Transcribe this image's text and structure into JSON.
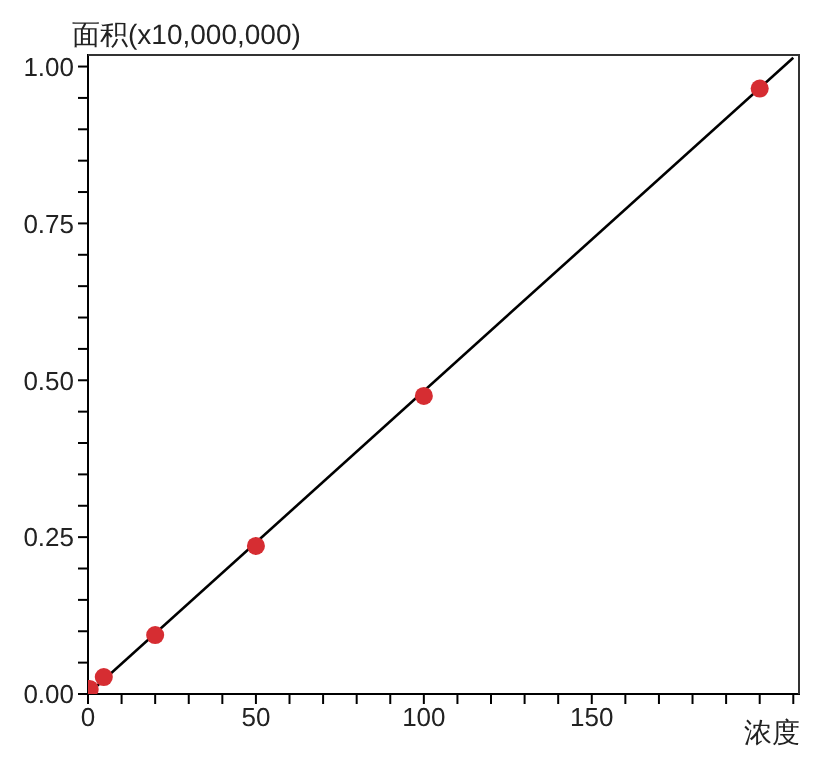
{
  "chart_data": {
    "type": "scatter",
    "xlabel": "浓度",
    "ylabel": "面积(x10,000,000)",
    "xlim": [
      0,
      212
    ],
    "ylim": [
      0,
      1.02
    ],
    "xticks": [
      0,
      {
        "value": 10,
        "label": null
      },
      {
        "value": 20,
        "label": null
      },
      {
        "value": 30,
        "label": null
      },
      {
        "value": 40,
        "label": null
      },
      50,
      {
        "value": 60,
        "label": null
      },
      {
        "value": 70,
        "label": null
      },
      {
        "value": 80,
        "label": null
      },
      {
        "value": 90,
        "label": null
      },
      100,
      {
        "value": 110,
        "label": null
      },
      {
        "value": 120,
        "label": null
      },
      {
        "value": 130,
        "label": null
      },
      {
        "value": 140,
        "label": null
      },
      150,
      {
        "value": 160,
        "label": null
      },
      {
        "value": 170,
        "label": null
      },
      {
        "value": 180,
        "label": null
      },
      {
        "value": 190,
        "label": null
      },
      {
        "value": 200,
        "label": null
      },
      {
        "value": 210,
        "label": null
      }
    ],
    "yticks": [
      {
        "value": 0,
        "label": "0.00"
      },
      {
        "value": 0.05,
        "label": null
      },
      {
        "value": 0.1,
        "label": null
      },
      {
        "value": 0.15,
        "label": null
      },
      {
        "value": 0.2,
        "label": null
      },
      {
        "value": 0.25,
        "label": "0.25"
      },
      {
        "value": 0.3,
        "label": null
      },
      {
        "value": 0.35,
        "label": null
      },
      {
        "value": 0.4,
        "label": null
      },
      {
        "value": 0.45,
        "label": null
      },
      {
        "value": 0.5,
        "label": "0.50"
      },
      {
        "value": 0.55,
        "label": null
      },
      {
        "value": 0.6,
        "label": null
      },
      {
        "value": 0.65,
        "label": null
      },
      {
        "value": 0.7,
        "label": null
      },
      {
        "value": 0.75,
        "label": "0.75"
      },
      {
        "value": 0.8,
        "label": null
      },
      {
        "value": 0.85,
        "label": null
      },
      {
        "value": 0.9,
        "label": null
      },
      {
        "value": 0.95,
        "label": null
      },
      {
        "value": 1,
        "label": "1.00"
      }
    ],
    "grid": false,
    "series": [
      {
        "type": "line",
        "color": "#000000",
        "x": [
          0,
          210
        ],
        "values": [
          0,
          1.014
        ],
        "marker": "none",
        "line_style": "solid"
      },
      {
        "color": "#d62d32",
        "x": [
          0.5,
          4.7,
          20,
          50,
          100,
          200
        ],
        "values": [
          0.008,
          0.027,
          0.094,
          0.236,
          0.475,
          0.965
        ],
        "marker": "circle"
      }
    ]
  }
}
